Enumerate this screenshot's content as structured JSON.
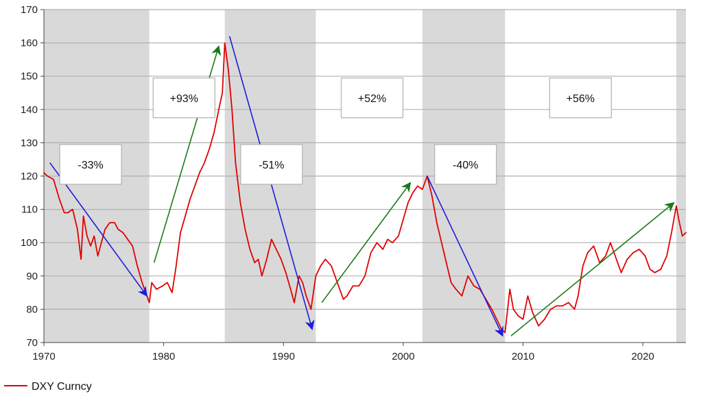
{
  "chart_data": {
    "type": "line",
    "title": "",
    "xlabel": "",
    "ylabel": "",
    "xlim": [
      1970,
      2023.6
    ],
    "ylim": [
      70,
      170
    ],
    "x_ticks": [
      1970,
      1980,
      1990,
      2000,
      2010,
      2020
    ],
    "y_ticks": [
      70,
      80,
      90,
      100,
      110,
      120,
      130,
      140,
      150,
      160,
      170
    ],
    "grid": "horizontal",
    "legend_position": "bottom-left",
    "colors": {
      "series": "#e00000",
      "decline_arrow": "#1c1cdc",
      "rise_arrow": "#1a7a1a",
      "shade": "#d9d9d9",
      "grid": "#b0b0b0"
    },
    "shaded_periods": [
      {
        "start": 1970.0,
        "end": 1978.8
      },
      {
        "start": 1985.1,
        "end": 1992.7
      },
      {
        "start": 2001.6,
        "end": 2008.5
      },
      {
        "start": 2022.8,
        "end": 2023.6
      }
    ],
    "annotations": [
      {
        "label": "-33%",
        "x": 1973.9,
        "y": 123.5
      },
      {
        "label": "+93%",
        "x": 1981.7,
        "y": 143.5
      },
      {
        "label": "-51%",
        "x": 1989.0,
        "y": 123.5
      },
      {
        "label": "+52%",
        "x": 1997.4,
        "y": 143.5
      },
      {
        "label": "-40%",
        "x": 2005.2,
        "y": 123.5
      },
      {
        "label": "+56%",
        "x": 2014.8,
        "y": 143.5
      }
    ],
    "trend_arrows": [
      {
        "direction": "down",
        "x1": 1970.5,
        "y1": 124,
        "x2": 1978.6,
        "y2": 84
      },
      {
        "direction": "up",
        "x1": 1979.2,
        "y1": 94,
        "x2": 1984.6,
        "y2": 159
      },
      {
        "direction": "down",
        "x1": 1985.5,
        "y1": 162,
        "x2": 1992.4,
        "y2": 74
      },
      {
        "direction": "up",
        "x1": 1993.2,
        "y1": 82,
        "x2": 2000.6,
        "y2": 118
      },
      {
        "direction": "down",
        "x1": 2002.0,
        "y1": 120,
        "x2": 2008.3,
        "y2": 72
      },
      {
        "direction": "up",
        "x1": 2009.0,
        "y1": 72,
        "x2": 2022.6,
        "y2": 112
      }
    ],
    "series": [
      {
        "name": "DXY Curncy",
        "x": [
          1970.0,
          1970.3,
          1970.8,
          1971.3,
          1971.7,
          1972.0,
          1972.4,
          1972.8,
          1973.1,
          1973.3,
          1973.6,
          1973.9,
          1974.2,
          1974.5,
          1974.8,
          1975.1,
          1975.5,
          1975.9,
          1976.2,
          1976.6,
          1977.0,
          1977.4,
          1977.8,
          1978.2,
          1978.5,
          1978.8,
          1979.0,
          1979.4,
          1979.9,
          1980.3,
          1980.7,
          1981.0,
          1981.4,
          1981.8,
          1982.2,
          1982.6,
          1983.0,
          1983.4,
          1983.8,
          1984.2,
          1984.6,
          1984.9,
          1985.1,
          1985.4,
          1985.7,
          1986.0,
          1986.4,
          1986.8,
          1987.2,
          1987.6,
          1987.9,
          1988.2,
          1988.6,
          1989.0,
          1989.4,
          1989.8,
          1990.2,
          1990.6,
          1990.9,
          1991.3,
          1991.6,
          1991.9,
          1992.3,
          1992.7,
          1993.1,
          1993.5,
          1994.0,
          1994.5,
          1995.0,
          1995.3,
          1995.8,
          1996.3,
          1996.8,
          1997.3,
          1997.8,
          1998.3,
          1998.7,
          1999.1,
          1999.6,
          2000.0,
          2000.4,
          2000.8,
          2001.2,
          2001.6,
          2002.0,
          2002.4,
          2002.8,
          2003.2,
          2003.6,
          2004.0,
          2004.4,
          2004.9,
          2005.4,
          2005.9,
          2006.4,
          2006.9,
          2007.4,
          2007.8,
          2008.2,
          2008.5,
          2008.9,
          2009.2,
          2009.6,
          2010.0,
          2010.4,
          2010.8,
          2011.3,
          2011.8,
          2012.3,
          2012.8,
          2013.3,
          2013.8,
          2014.3,
          2014.6,
          2015.0,
          2015.4,
          2015.9,
          2016.4,
          2016.9,
          2017.3,
          2017.8,
          2018.2,
          2018.7,
          2019.2,
          2019.7,
          2020.2,
          2020.6,
          2021.0,
          2021.5,
          2022.0,
          2022.4,
          2022.8,
          2023.0,
          2023.3,
          2023.6
        ],
        "values": [
          121,
          120,
          119,
          113,
          109,
          109,
          110,
          104,
          95,
          108,
          102,
          99,
          102,
          96,
          100,
          104,
          106,
          106,
          104,
          103,
          101,
          99,
          93,
          88,
          85,
          82,
          88,
          86,
          87,
          88,
          85,
          92,
          103,
          108,
          113,
          117,
          121,
          124,
          128,
          133,
          140,
          145,
          160,
          152,
          140,
          124,
          112,
          104,
          98,
          94,
          95,
          90,
          95,
          101,
          98,
          95,
          91,
          86,
          82,
          90,
          88,
          84,
          80,
          90,
          93,
          95,
          93,
          88,
          83,
          84,
          87,
          87,
          90,
          97,
          100,
          98,
          101,
          100,
          102,
          107,
          112,
          115,
          117,
          116,
          120,
          114,
          106,
          100,
          94,
          88,
          86,
          84,
          90,
          87,
          86,
          83,
          80,
          77,
          74,
          73,
          86,
          80,
          78,
          77,
          84,
          79,
          75,
          77,
          80,
          81,
          81,
          82,
          80,
          84,
          93,
          97,
          99,
          94,
          96,
          100,
          95,
          91,
          95,
          97,
          98,
          96,
          92,
          91,
          92,
          96,
          103,
          111,
          107,
          102,
          103
        ]
      }
    ]
  }
}
